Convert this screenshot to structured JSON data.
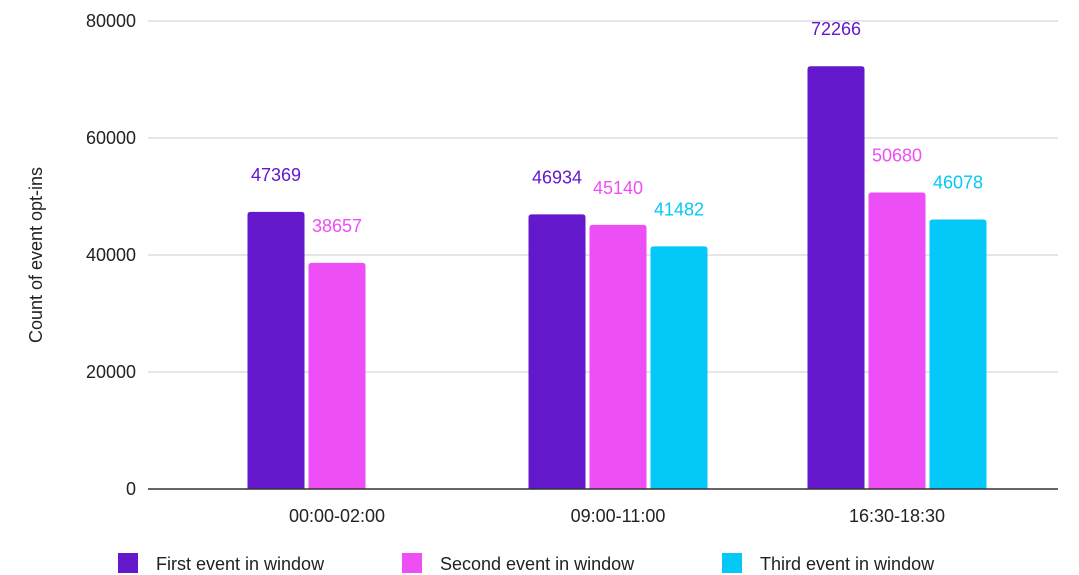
{
  "chart_data": {
    "type": "bar",
    "title": "",
    "xlabel": "",
    "ylabel": "Count of event opt-ins",
    "ylim": [
      0,
      80000
    ],
    "yticks": [
      0,
      20000,
      40000,
      60000,
      80000
    ],
    "grid": true,
    "legend": "bottom",
    "categories": [
      "00:00-02:00",
      "09:00-11:00",
      "16:30-18:30"
    ],
    "series": [
      {
        "name": "First event in window",
        "color": "#6318cc",
        "values": [
          47369,
          46934,
          72266
        ]
      },
      {
        "name": "Second event in window",
        "color": "#ee4ef5",
        "values": [
          38657,
          45140,
          50680
        ]
      },
      {
        "name": "Third event in window",
        "color": "#04c8f7",
        "values": [
          null,
          41482,
          46078
        ]
      }
    ]
  }
}
